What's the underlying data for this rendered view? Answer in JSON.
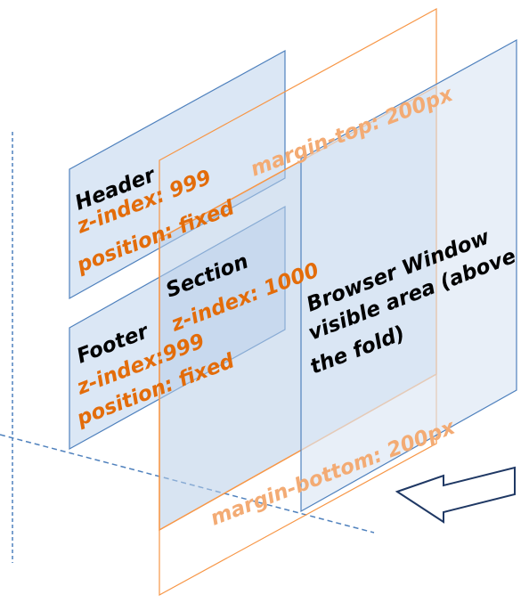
{
  "colors": {
    "blue_fill": "#dbe7f5",
    "blue_border": "#4f81bd",
    "orange_border": "#f79646",
    "orange_text": "#e36c0a",
    "dash_line": "#4f81bd",
    "arrow_stroke": "#1f3864"
  },
  "header": {
    "title": "Header",
    "zindex": "z-index: 999",
    "position": "position: fixed"
  },
  "footer": {
    "title": "Footer",
    "zindex": "z-index:999",
    "position": "position: fixed"
  },
  "section": {
    "title": "Section",
    "zindex": "z-index: 1000"
  },
  "body_layer": {
    "margin_top": "margin-top: 200px",
    "margin_bottom": "margin-bottom: 200px"
  },
  "browser": {
    "line1": "Browser Window",
    "line2": "visible area (above",
    "line3": "the fold)"
  },
  "icons": {
    "view_arrow": "arrow-left-icon"
  }
}
